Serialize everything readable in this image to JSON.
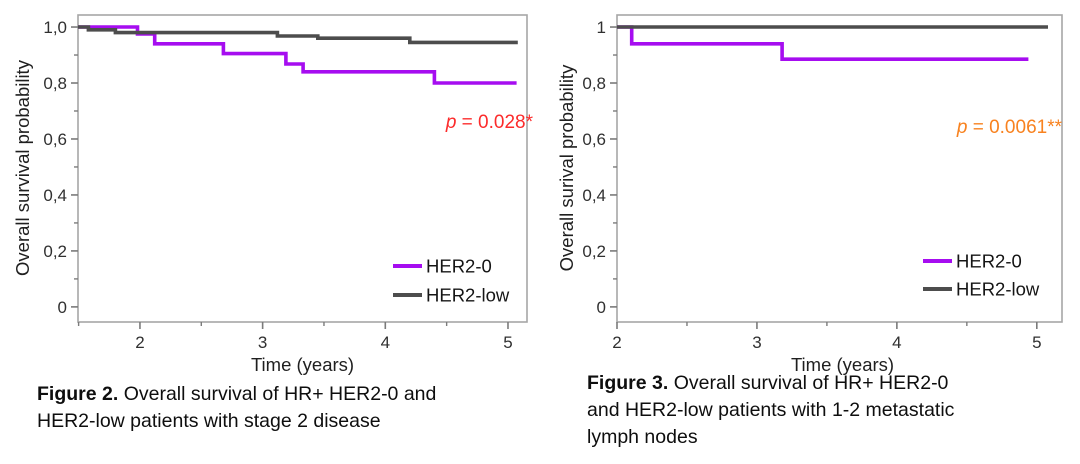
{
  "page": {
    "background": "#ffffff"
  },
  "chart_data": [
    {
      "type": "line",
      "subtype": "kaplan-meier-step",
      "figure_label": "Figure 2.",
      "caption_line1_rest": " Overall survival of HR+ HER2-0 and",
      "caption_line2": "HER2-low patients with stage 2 disease",
      "caption_line3": "",
      "xlabel": "Time (years)",
      "ylabel": "Overall survival probability",
      "xlim": [
        1.495,
        5.155
      ],
      "ylim": [
        -0.054,
        1.043
      ],
      "xticks": [
        2,
        3,
        4,
        5
      ],
      "xtick_labels": [
        "2",
        "3",
        "4",
        "5"
      ],
      "xminor": [
        1.5,
        2.5,
        3.5,
        4.5
      ],
      "yticks": [
        0,
        0.2,
        0.4,
        0.6,
        0.8,
        1.0
      ],
      "ytick_labels": [
        "0",
        "0,2",
        "0,4",
        "0,6",
        "0,8",
        "1,0"
      ],
      "yminor": [
        0.1,
        0.3,
        0.5,
        0.7,
        0.9
      ],
      "grid": false,
      "legend_position": "inside-bottom-right",
      "p_annotation": {
        "italic": "p",
        "rest": " = 0.028*",
        "color": "#fc2b2b"
      },
      "series": [
        {
          "name": "HER2-0",
          "color": "#a60df0",
          "steps": [
            [
              1.495,
              1.0
            ],
            [
              1.98,
              0.975
            ],
            [
              2.12,
              0.94
            ],
            [
              2.68,
              0.905
            ],
            [
              3.19,
              0.868
            ],
            [
              3.33,
              0.84
            ],
            [
              4.4,
              0.8
            ],
            [
              5.07,
              0.8
            ]
          ]
        },
        {
          "name": "HER2-low",
          "color": "#4d4d4d",
          "steps": [
            [
              1.495,
              1.0
            ],
            [
              1.58,
              0.99
            ],
            [
              1.8,
              0.98
            ],
            [
              3.12,
              0.968
            ],
            [
              3.45,
              0.96
            ],
            [
              4.2,
              0.945
            ],
            [
              5.08,
              0.945
            ]
          ]
        }
      ]
    },
    {
      "type": "line",
      "subtype": "kaplan-meier-step",
      "figure_label": "Figure 3.",
      "caption_line1_rest": " Overall survival of HR+ HER2-0",
      "caption_line2": "and HER2-low patients with 1-2 metastatic",
      "caption_line3": "lymph nodes",
      "xlabel": "Time (years)",
      "ylabel": "Overall surival probability",
      "xlim": [
        2.0,
        5.18
      ],
      "ylim": [
        -0.054,
        1.043
      ],
      "xticks": [
        2,
        3,
        4,
        5
      ],
      "xtick_labels": [
        "2",
        "3",
        "4",
        "5"
      ],
      "xminor": [
        2.5,
        3.5,
        4.5
      ],
      "yticks": [
        0,
        0.2,
        0.4,
        0.6,
        0.8,
        1.0
      ],
      "ytick_labels": [
        "0",
        "0,2",
        "0,4",
        "0,6",
        "0,8",
        "1"
      ],
      "yminor": [
        0.1,
        0.3,
        0.5,
        0.7,
        0.9
      ],
      "grid": false,
      "legend_position": "inside-bottom-right",
      "p_annotation": {
        "italic": "p",
        "rest": " = 0.0061**",
        "color": "#f8821f"
      },
      "series": [
        {
          "name": "HER2-0",
          "color": "#a60df0",
          "steps": [
            [
              2.0,
              1.0
            ],
            [
              2.105,
              0.94
            ],
            [
              3.18,
              0.885
            ],
            [
              4.94,
              0.885
            ]
          ]
        },
        {
          "name": "HER2-low",
          "color": "#4d4d4d",
          "steps": [
            [
              2.0,
              1.0
            ],
            [
              5.08,
              1.0
            ]
          ]
        }
      ]
    }
  ],
  "style": {
    "plot_border_color": "#a6a6a6",
    "tick_color": "#7b7b7b",
    "tick_label_color": "#303030",
    "text_color": "#0e0e0e",
    "her2_0_color": "#a60df0",
    "her2_low_color": "#4d4d4d"
  }
}
